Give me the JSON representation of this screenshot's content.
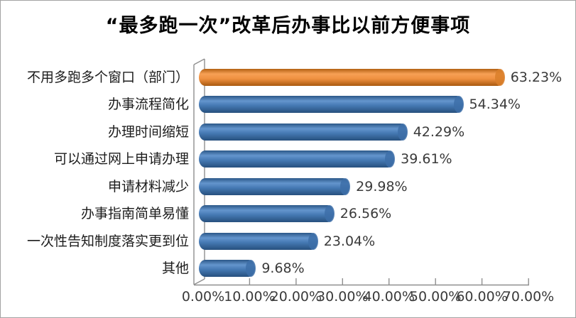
{
  "title": "“最多跑一次”改革后办事比以前方便事项",
  "chart_data": {
    "type": "bar",
    "orientation": "horizontal",
    "title": "“最多跑一次”改革后办事比以前方便事项",
    "categories": [
      "不用多跑多个窗口（部门）",
      "办事流程简化",
      "办理时间缩短",
      "可以通过网上申请办理",
      "申请材料减少",
      "办事指南简单易懂",
      "一次性告知制度落实更到位",
      "其他"
    ],
    "values": [
      63.23,
      54.34,
      42.29,
      39.61,
      29.98,
      26.56,
      23.04,
      9.68
    ],
    "value_labels": [
      "63.23%",
      "54.34%",
      "42.29%",
      "39.61%",
      "29.98%",
      "26.56%",
      "23.04%",
      "9.68%"
    ],
    "x_ticks": [
      "0.00%",
      "10.00%",
      "20.00%",
      "30.00%",
      "40.00%",
      "50.00%",
      "60.00%",
      "70.00%"
    ],
    "xlim": [
      0,
      70
    ],
    "xlabel": "",
    "ylabel": "",
    "grid": false,
    "legend": false,
    "highlight_index": 0,
    "bar_styles": {
      "highlight": {
        "base": "#ED8C36",
        "dark_top": "#B26012",
        "light": "#F7A055",
        "mid": "#EF9040",
        "dark_bottom": "#A85A10",
        "cap": "#D97F2A"
      },
      "default": {
        "base": "#4579B2",
        "dark_top": "#2B5787",
        "light": "#6495CD",
        "mid": "#4478B2",
        "dark_bottom": "#27507E",
        "cap": "#3D6EA8"
      }
    },
    "axis_color": "#8F8F8F"
  }
}
